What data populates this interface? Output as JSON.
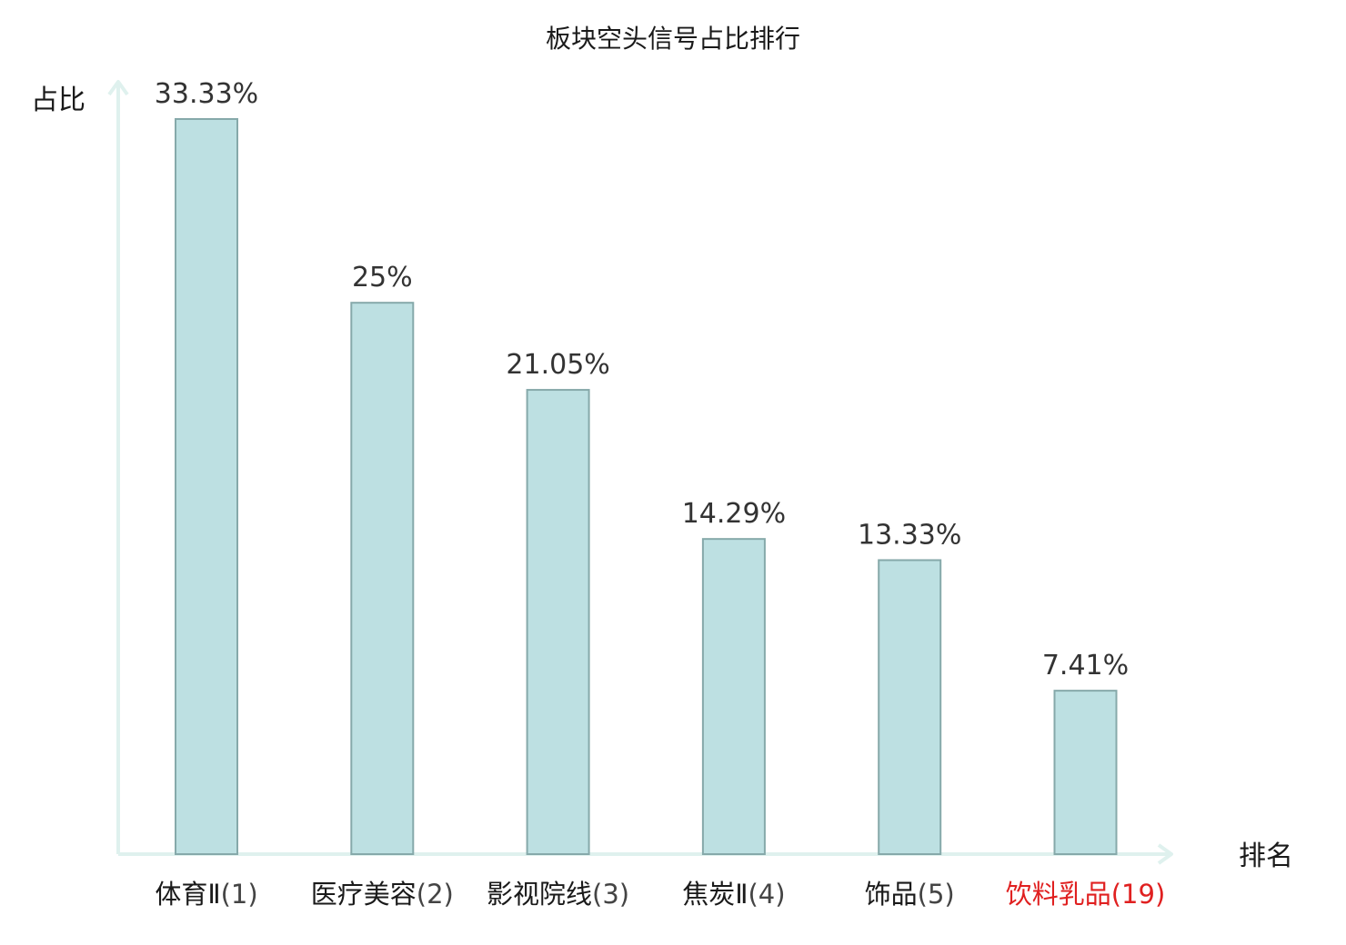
{
  "chart_data": {
    "type": "bar",
    "title": "板块空头信号占比排行",
    "ylabel": "占比",
    "xlabel": "排名",
    "categories": [
      {
        "name": "体育Ⅱ",
        "rank": "(1)",
        "highlight": false
      },
      {
        "name": "医疗美容",
        "rank": "(2)",
        "highlight": false
      },
      {
        "name": "影视院线",
        "rank": "(3)",
        "highlight": false
      },
      {
        "name": "焦炭Ⅱ",
        "rank": "(4)",
        "highlight": false
      },
      {
        "name": "饰品",
        "rank": "(5)",
        "highlight": false
      },
      {
        "name": "饮料乳品",
        "rank": "(19)",
        "highlight": true
      }
    ],
    "values": [
      33.33,
      25,
      21.05,
      14.29,
      13.33,
      7.41
    ],
    "value_labels": [
      "33.33%",
      "25%",
      "21.05%",
      "14.29%",
      "13.33%",
      "7.41%"
    ],
    "ylim": [
      0,
      33.33
    ],
    "grid": false,
    "colors": {
      "bar_fill": "#bde0e2",
      "bar_stroke": "#86a9aa",
      "axis": "#dff1ee",
      "text": "#1a1a1a",
      "highlight": "#e02020"
    }
  }
}
